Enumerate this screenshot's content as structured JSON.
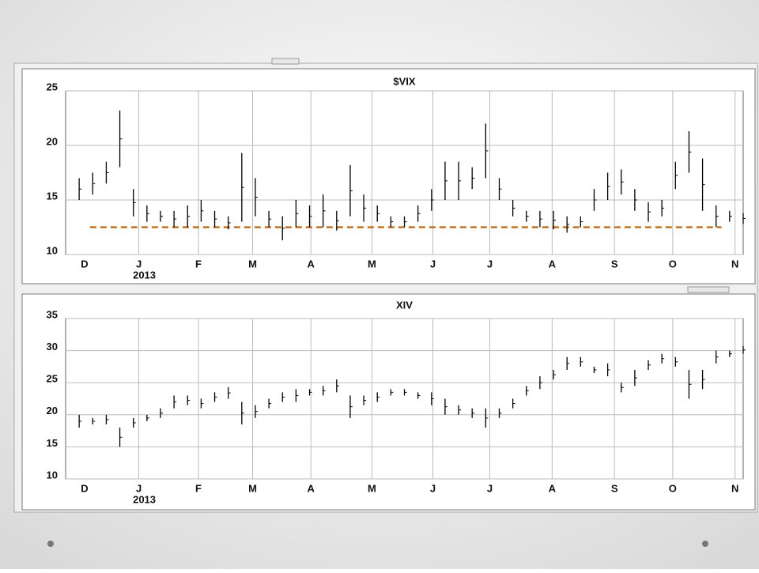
{
  "chart_data": [
    {
      "type": "hilo",
      "title": "$VIX",
      "color": "#000000",
      "high": [
        17,
        17.5,
        18.5,
        23.2,
        16,
        14.5,
        14,
        14,
        14.5,
        15,
        14,
        13.5,
        19.3,
        17,
        14,
        13.5,
        15,
        14.5,
        15.5,
        14,
        18.2,
        15.5,
        14.5,
        13.5,
        13.5,
        14.5,
        16,
        18.5,
        18.5,
        18,
        22,
        17,
        15,
        14,
        14,
        14,
        13.5,
        13.5,
        16,
        17.5,
        17.8,
        16,
        14.8,
        15,
        18.5,
        21.3,
        18.8,
        14.5,
        14,
        13.8
      ],
      "low": [
        15,
        15.5,
        16.5,
        18,
        13.5,
        13,
        13,
        12.5,
        12.5,
        13,
        12.5,
        12.3,
        13,
        13.5,
        12.5,
        11.3,
        12.5,
        12.5,
        12.5,
        12.2,
        13.5,
        13,
        13,
        12.5,
        12.5,
        13,
        14,
        15,
        15,
        16,
        17,
        15,
        13.5,
        13,
        12.5,
        12.3,
        12,
        12.5,
        14,
        15,
        15.5,
        14,
        13,
        13.5,
        16,
        17.5,
        14,
        12.5,
        13,
        12.8
      ],
      "xlim": [
        -1,
        49
      ],
      "ylim": [
        10,
        25
      ],
      "yticks": [
        10,
        15,
        20,
        25
      ],
      "grid": true,
      "xticks": [
        {
          "value": 0.4,
          "label": "D"
        },
        {
          "value": 4.4,
          "label": "J"
        },
        {
          "value": 8.8,
          "label": "F"
        },
        {
          "value": 12.8,
          "label": "M"
        },
        {
          "value": 17.1,
          "label": "A"
        },
        {
          "value": 21.6,
          "label": "M"
        },
        {
          "value": 26.1,
          "label": "J"
        },
        {
          "value": 30.3,
          "label": "J"
        },
        {
          "value": 34.9,
          "label": "A"
        },
        {
          "value": 39.5,
          "label": "S"
        },
        {
          "value": 43.8,
          "label": "O"
        },
        {
          "value": 48.4,
          "label": "N"
        }
      ],
      "year_label": "2013",
      "reference_line": {
        "value": 12.5,
        "from": 0.8,
        "to": 47.4,
        "color": "#c0650f"
      }
    },
    {
      "type": "hilo",
      "title": "XIV",
      "color": "#000000",
      "high": [
        20,
        19.5,
        20,
        18,
        19.5,
        20,
        21,
        23,
        23,
        22.5,
        23.5,
        24.3,
        22,
        21.5,
        22.5,
        23.5,
        24,
        24,
        24.5,
        25.5,
        23,
        23,
        23.5,
        24,
        24,
        23.5,
        23.5,
        22.5,
        21.5,
        21,
        21,
        21,
        22.5,
        24.5,
        26,
        27,
        29,
        29,
        27.5,
        28,
        25,
        27,
        28.5,
        29.5,
        29,
        27,
        27,
        30,
        30,
        30.7
      ],
      "low": [
        18,
        18.5,
        18.5,
        15,
        18,
        19,
        19.5,
        21,
        21.5,
        21,
        22,
        22.5,
        18.5,
        19.5,
        21,
        22,
        22,
        23,
        23,
        23.5,
        19.5,
        21.5,
        22,
        23,
        23,
        22.5,
        21.5,
        20,
        20,
        19.5,
        18,
        19.5,
        21,
        23,
        24,
        25.5,
        27,
        27.5,
        26.5,
        26,
        23.5,
        24.5,
        27,
        28,
        27.5,
        22.5,
        24,
        28,
        29,
        29.5
      ],
      "xlim": [
        -1,
        49
      ],
      "ylim": [
        10,
        35
      ],
      "yticks": [
        10,
        15,
        20,
        25,
        30,
        35
      ],
      "grid": true,
      "xticks": [
        {
          "value": 0.4,
          "label": "D"
        },
        {
          "value": 4.4,
          "label": "J"
        },
        {
          "value": 8.8,
          "label": "F"
        },
        {
          "value": 12.8,
          "label": "M"
        },
        {
          "value": 17.1,
          "label": "A"
        },
        {
          "value": 21.6,
          "label": "M"
        },
        {
          "value": 26.1,
          "label": "J"
        },
        {
          "value": 30.3,
          "label": "J"
        },
        {
          "value": 34.9,
          "label": "A"
        },
        {
          "value": 39.5,
          "label": "S"
        },
        {
          "value": 43.8,
          "label": "O"
        },
        {
          "value": 48.4,
          "label": "N"
        }
      ],
      "year_label": "2013"
    }
  ]
}
